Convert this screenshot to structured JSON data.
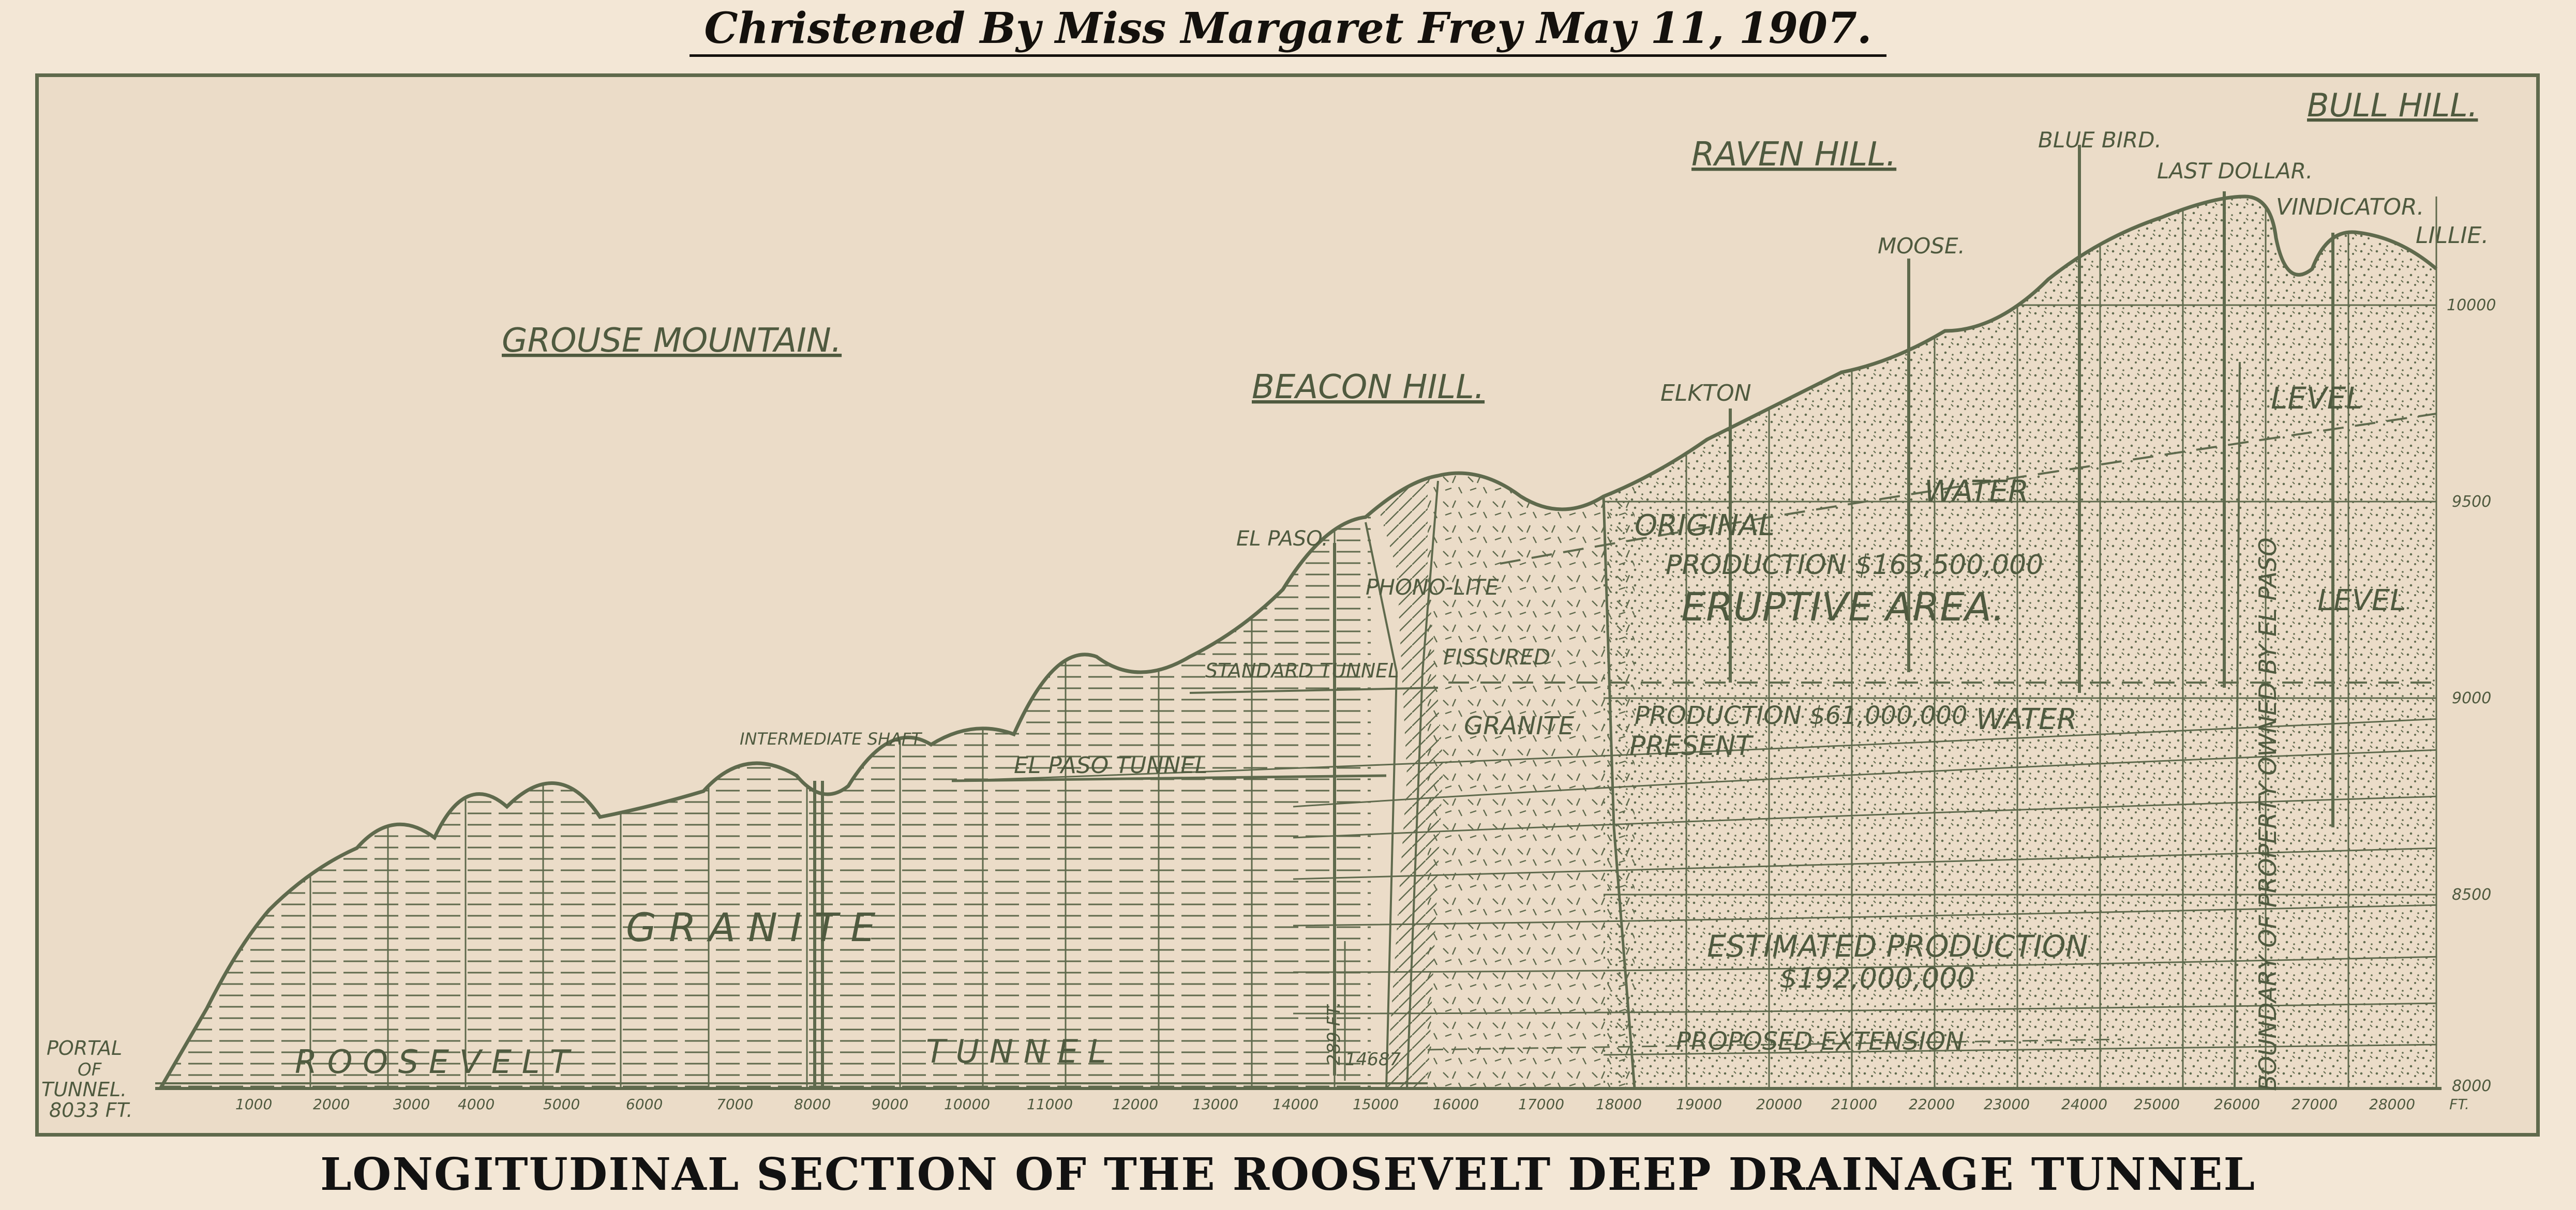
{
  "title": "Christened By Miss Margaret Frey   May 11, 1907.",
  "caption": "LONGITUDINAL SECTION OF THE ROOSEVELT DEEP DRAINAGE TUNNEL",
  "colors": {
    "ink": "#5f6a4d",
    "paper": "#ebdcc8",
    "background": "#f3e7d6",
    "title_text": "#14110d"
  },
  "labels": {
    "grouse_mountain": "GROUSE MOUNTAIN.",
    "beacon_hill": "BEACON HILL.",
    "raven_hill": "RAVEN HILL.",
    "bull_hill": "BULL HILL.",
    "blue_bird": "BLUE BIRD.",
    "last_dollar": "LAST DOLLAR.",
    "vindicator": "VINDICATOR.",
    "lillie": "LILLIE.",
    "moose": "MOOSE.",
    "elkton": "ELKTON",
    "el_paso": "EL PASO.",
    "phonolite": "PHONO-LITE",
    "fissured": "FISSURED",
    "granite_fissured": "GRANITE",
    "standard_tunnel": "STANDARD TUNNEL",
    "el_paso_tunnel": "EL PASO TUNNEL",
    "intermediate_shaft": "INTERMEDIATE SHAFT",
    "original": "ORIGINAL",
    "water_upper": "WATER",
    "level_upper": "LEVEL",
    "production_163": "PRODUCTION $163,500,000",
    "eruptive_area": "ERUPTIVE AREA.",
    "level_lower": "LEVEL",
    "production_61": "PRODUCTION $61,000,000",
    "water_lower": "WATER",
    "present": "PRESENT",
    "granite": "G R A N I T E",
    "estimated_production": "ESTIMATED PRODUCTION",
    "estimated_value": "$192,000,000",
    "proposed_extension": "PROPOSED EXTENSION",
    "roosevelt": "R O O S E V E L T",
    "tunnel_word": "T U N N E L",
    "portal": [
      "PORTAL",
      "OF",
      "TUNNEL.",
      "8033 FT."
    ],
    "depth_289": "289 FT.",
    "distance_14687": "14687",
    "boundary": "BOUNDARY OF PROPERTY OWNED BY EL PASO"
  },
  "distance_axis": {
    "unit": "FT.",
    "ticks": [
      "1000",
      "2000",
      "3000",
      "4000",
      "5000",
      "6000",
      "7000",
      "8000",
      "9000",
      "10000",
      "11000",
      "12000",
      "13000",
      "14000",
      "15000",
      "16000",
      "17000",
      "18000",
      "19000",
      "20000",
      "21000",
      "22000",
      "23000",
      "24000",
      "25000",
      "26000",
      "27000",
      "28000"
    ]
  },
  "elevation_axis": {
    "ticks": [
      "10000",
      "9500",
      "9000",
      "8500",
      "8000"
    ]
  }
}
